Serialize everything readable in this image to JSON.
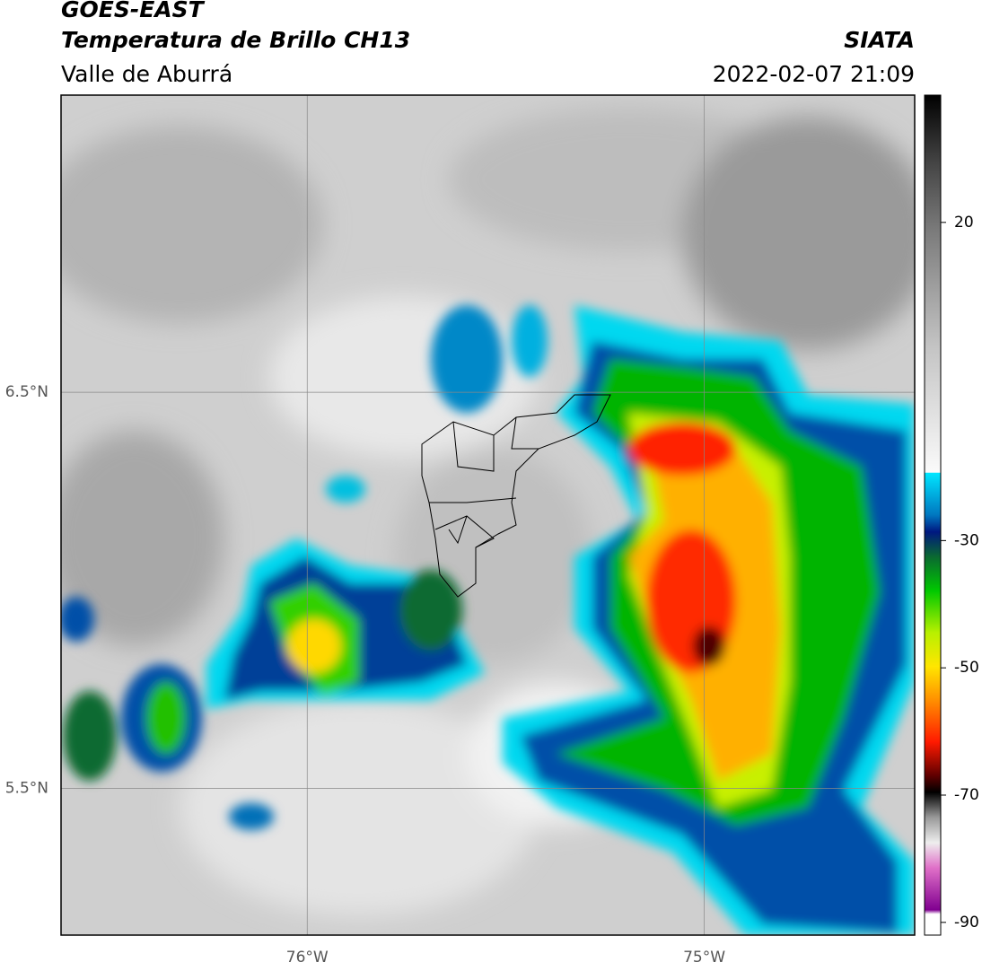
{
  "header": {
    "title": "GOES-EAST",
    "subtitle": "Temperatura de Brillo CH13",
    "region": "Valle de Aburrá",
    "source": "SIATA",
    "datetime": "2022-02-07 21:09"
  },
  "map": {
    "xlim": [
      -76.62,
      -74.47
    ],
    "ylim": [
      5.13,
      7.25
    ],
    "xticks": [
      {
        "value": -76,
        "label": "76°W"
      },
      {
        "value": -75,
        "label": "75°W"
      }
    ],
    "yticks": [
      {
        "value": 5.5,
        "label": "5.5°N"
      },
      {
        "value": 6.5,
        "label": "6.5°N"
      }
    ],
    "grid": true
  },
  "colorbar": {
    "lim": [
      -92,
      40
    ],
    "ticks": [
      20,
      -30,
      -50,
      -70,
      -90
    ]
  }
}
